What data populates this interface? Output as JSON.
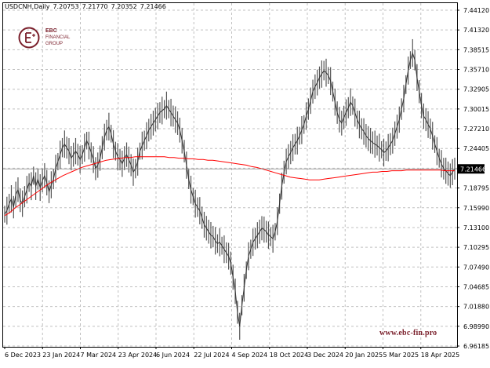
{
  "header": {
    "symbol": "USDCNH,Daily",
    "ohlc": [
      "7.20753",
      "7.21770",
      "7.20352",
      "7.21466"
    ]
  },
  "logo": {
    "line1": "EBC",
    "line2": "FINANCIAL",
    "line3": "GROUP",
    "accent": "#7a1f2b"
  },
  "watermark": "www.ebc-fin.pro",
  "colors": {
    "candles": "#000000",
    "ma_line": "#ff0000",
    "grid": "#c0c0c0",
    "last_price_tag": "#000000"
  },
  "chart_data": {
    "type": "line",
    "title": "USDCNH,Daily",
    "grid": true,
    "ylim": [
      6.9618,
      7.4412
    ],
    "y_ticks": [
      "7.44120",
      "7.41320",
      "7.38515",
      "7.35710",
      "7.32905",
      "7.30015",
      "7.27210",
      "7.24405",
      "7.21466",
      "7.18795",
      "7.15990",
      "7.13100",
      "7.10295",
      "7.07490",
      "7.04685",
      "7.01880",
      "6.98990",
      "6.96185"
    ],
    "x_ticks": [
      "6 Dec 2023",
      "23 Jan 2024",
      "7 Mar 2024",
      "23 Apr 2024",
      "6 Jun 2024",
      "22 Jul 2024",
      "4 Sep 2024",
      "18 Oct 2024",
      "3 Dec 2024",
      "20 Jan 2025",
      "5 Mar 2025",
      "18 Apr 2025"
    ],
    "last_price": "7.21466",
    "series": [
      {
        "values": [
          7.15,
          7.155,
          7.165,
          7.172,
          7.16,
          7.178,
          7.185,
          7.17,
          7.165,
          7.175,
          7.185,
          7.195,
          7.19,
          7.205,
          7.19,
          7.2,
          7.188,
          7.198,
          7.205,
          7.195,
          7.182,
          7.192,
          7.2,
          7.215,
          7.225,
          7.235,
          7.245,
          7.25,
          7.245,
          7.24,
          7.23,
          7.235,
          7.24,
          7.235,
          7.228,
          7.235,
          7.245,
          7.255,
          7.248,
          7.238,
          7.228,
          7.215,
          7.22,
          7.23,
          7.245,
          7.26,
          7.27,
          7.275,
          7.265,
          7.25,
          7.24,
          7.232,
          7.228,
          7.222,
          7.23,
          7.235,
          7.228,
          7.22,
          7.21,
          7.215,
          7.225,
          7.24,
          7.248,
          7.255,
          7.262,
          7.27,
          7.275,
          7.28,
          7.285,
          7.29,
          7.295,
          7.298,
          7.3,
          7.305,
          7.3,
          7.295,
          7.29,
          7.285,
          7.28,
          7.27,
          7.255,
          7.24,
          7.22,
          7.2,
          7.185,
          7.175,
          7.165,
          7.16,
          7.155,
          7.145,
          7.135,
          7.13,
          7.125,
          7.12,
          7.118,
          7.112,
          7.108,
          7.11,
          7.105,
          7.1,
          7.095,
          7.09,
          7.08,
          7.06,
          7.04,
          7.01,
          6.99,
          7.02,
          7.045,
          7.07,
          7.09,
          7.1,
          7.11,
          7.115,
          7.12,
          7.125,
          7.13,
          7.128,
          7.125,
          7.12,
          7.118,
          7.115,
          7.125,
          7.14,
          7.165,
          7.19,
          7.21,
          7.225,
          7.232,
          7.238,
          7.245,
          7.25,
          7.255,
          7.262,
          7.27,
          7.278,
          7.29,
          7.3,
          7.312,
          7.325,
          7.332,
          7.338,
          7.345,
          7.35,
          7.355,
          7.352,
          7.348,
          7.34,
          7.325,
          7.31,
          7.295,
          7.285,
          7.28,
          7.288,
          7.295,
          7.302,
          7.31,
          7.305,
          7.295,
          7.285,
          7.278,
          7.272,
          7.268,
          7.262,
          7.258,
          7.255,
          7.252,
          7.25,
          7.248,
          7.245,
          7.242,
          7.238,
          7.24,
          7.245,
          7.25,
          7.255,
          7.265,
          7.275,
          7.285,
          7.3,
          7.315,
          7.335,
          7.355,
          7.37,
          7.38,
          7.37,
          7.345,
          7.325,
          7.305,
          7.29,
          7.285,
          7.278,
          7.272,
          7.262,
          7.25,
          7.24,
          7.23,
          7.222,
          7.215,
          7.212,
          7.208,
          7.205,
          7.21,
          7.215
        ]
      },
      {
        "name": "",
        "values": [
          7.148,
          7.152,
          7.158,
          7.163,
          7.168,
          7.173,
          7.178,
          7.183,
          7.188,
          7.193,
          7.197,
          7.201,
          7.205,
          7.208,
          7.211,
          7.214,
          7.217,
          7.219,
          7.221,
          7.223,
          7.225,
          7.227,
          7.228,
          7.229,
          7.23,
          7.231,
          7.231,
          7.232,
          7.232,
          7.232,
          7.232,
          7.232,
          7.232,
          7.232,
          7.231,
          7.231,
          7.23,
          7.23,
          7.229,
          7.229,
          7.228,
          7.228,
          7.227,
          7.227,
          7.226,
          7.225,
          7.224,
          7.223,
          7.222,
          7.221,
          7.22,
          7.218,
          7.217,
          7.215,
          7.213,
          7.211,
          7.209,
          7.207,
          7.205,
          7.203,
          7.202,
          7.201,
          7.2,
          7.199,
          7.199,
          7.199,
          7.2,
          7.201,
          7.202,
          7.203,
          7.204,
          7.205,
          7.206,
          7.207,
          7.208,
          7.209,
          7.21,
          7.21,
          7.211,
          7.211,
          7.212,
          7.212,
          7.212,
          7.213,
          7.213,
          7.213,
          7.213,
          7.213,
          7.213,
          7.213,
          7.213,
          7.212,
          7.212,
          7.212
        ]
      }
    ]
  }
}
